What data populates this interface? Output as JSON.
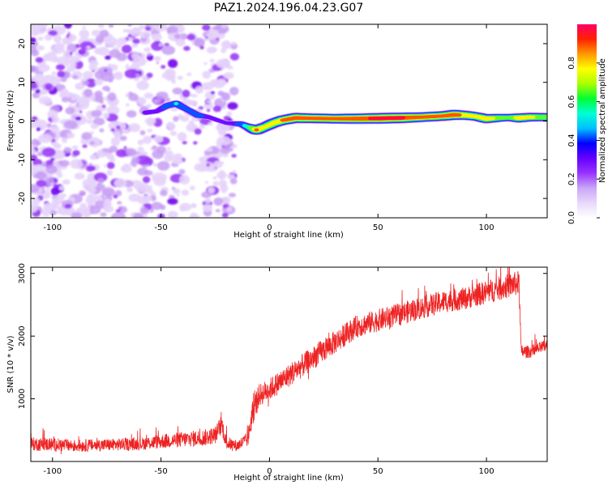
{
  "title": "PAZ1.2024.196.04.23.G07",
  "chart_data": [
    {
      "type": "heatmap",
      "xlabel": "Height of straight line (km)",
      "ylabel": "Frequency (Hz)",
      "xlim": [
        -110,
        128
      ],
      "ylim": [
        -25,
        25
      ],
      "x_ticks": [
        -100,
        -50,
        0,
        50,
        100
      ],
      "y_ticks": [
        -20,
        -10,
        0,
        10,
        20
      ],
      "colorbar": {
        "label": "Normalized spectral amplitude",
        "range": [
          0,
          1
        ],
        "ticks": [
          0.0,
          0.2,
          0.4,
          0.6,
          0.8
        ],
        "colormap": [
          "#ffffff",
          "#e9d8fb",
          "#c9a6f6",
          "#9933ff",
          "#6600ff",
          "#0000ff",
          "#00bfff",
          "#00ffd5",
          "#00ff33",
          "#aaff00",
          "#ffff00",
          "#ff9900",
          "#ff2200",
          "#ff0066"
        ]
      },
      "noise_region_x": [
        -110,
        -16
      ],
      "signal_trace": [
        {
          "x": -57,
          "f": 2.2,
          "a": 0.35
        },
        {
          "x": -52,
          "f": 2.5,
          "a": 0.3
        },
        {
          "x": -47,
          "f": 4.0,
          "a": 0.45
        },
        {
          "x": -43,
          "f": 4.5,
          "a": 0.5
        },
        {
          "x": -38,
          "f": 3.0,
          "a": 0.4
        },
        {
          "x": -33,
          "f": 1.5,
          "a": 0.45
        },
        {
          "x": -28,
          "f": 1.0,
          "a": 0.3
        },
        {
          "x": -20,
          "f": -0.5,
          "a": 0.25
        },
        {
          "x": -13,
          "f": -0.8,
          "a": 0.45
        },
        {
          "x": -10,
          "f": -1.5,
          "a": 0.55
        },
        {
          "x": -6,
          "f": -2.3,
          "a": 0.85
        },
        {
          "x": -2,
          "f": -1.5,
          "a": 0.75
        },
        {
          "x": 2,
          "f": -0.5,
          "a": 0.8
        },
        {
          "x": 6,
          "f": 0.2,
          "a": 0.85
        },
        {
          "x": 12,
          "f": 0.8,
          "a": 0.9
        },
        {
          "x": 20,
          "f": 0.7,
          "a": 0.85
        },
        {
          "x": 30,
          "f": 0.6,
          "a": 0.85
        },
        {
          "x": 40,
          "f": 0.6,
          "a": 0.9
        },
        {
          "x": 50,
          "f": 0.7,
          "a": 0.95
        },
        {
          "x": 60,
          "f": 0.8,
          "a": 0.95
        },
        {
          "x": 70,
          "f": 1.0,
          "a": 0.85
        },
        {
          "x": 80,
          "f": 1.3,
          "a": 0.85
        },
        {
          "x": 85,
          "f": 1.6,
          "a": 0.9
        },
        {
          "x": 90,
          "f": 1.5,
          "a": 0.8
        },
        {
          "x": 95,
          "f": 1.2,
          "a": 0.75
        },
        {
          "x": 100,
          "f": 0.6,
          "a": 0.8
        },
        {
          "x": 105,
          "f": 0.8,
          "a": 0.7
        },
        {
          "x": 110,
          "f": 0.9,
          "a": 0.6
        },
        {
          "x": 115,
          "f": 0.8,
          "a": 0.8
        },
        {
          "x": 120,
          "f": 1.0,
          "a": 0.75
        },
        {
          "x": 128,
          "f": 1.0,
          "a": 0.7
        }
      ]
    },
    {
      "type": "line",
      "xlabel": "Height of straight line (km)",
      "ylabel": "SNR (10 * v/v)",
      "xlim": [
        -110,
        128
      ],
      "ylim": [
        0,
        3100
      ],
      "x_ticks": [
        -100,
        -50,
        0,
        50,
        100
      ],
      "y_ticks": [
        1000,
        2000,
        3000
      ],
      "series": [
        {
          "color": "#ee2222",
          "x": [
            -110,
            -100,
            -90,
            -80,
            -70,
            -60,
            -50,
            -40,
            -30,
            -25,
            -22,
            -20,
            -15,
            -10,
            -8,
            -5,
            0,
            10,
            20,
            30,
            40,
            50,
            60,
            70,
            80,
            90,
            100,
            110,
            115,
            116,
            120,
            128
          ],
          "y": [
            280,
            270,
            250,
            260,
            270,
            280,
            320,
            350,
            380,
            420,
            600,
            300,
            250,
            350,
            750,
            1050,
            1150,
            1400,
            1650,
            1900,
            2150,
            2250,
            2350,
            2450,
            2550,
            2600,
            2700,
            2800,
            2850,
            1750,
            1750,
            1850
          ],
          "noise_amplitude": [
            120,
            120,
            110,
            110,
            110,
            110,
            130,
            140,
            150,
            150,
            180,
            120,
            100,
            140,
            250,
            200,
            200,
            210,
            210,
            210,
            200,
            200,
            200,
            200,
            200,
            200,
            210,
            220,
            220,
            120,
            110,
            110
          ]
        }
      ]
    }
  ]
}
